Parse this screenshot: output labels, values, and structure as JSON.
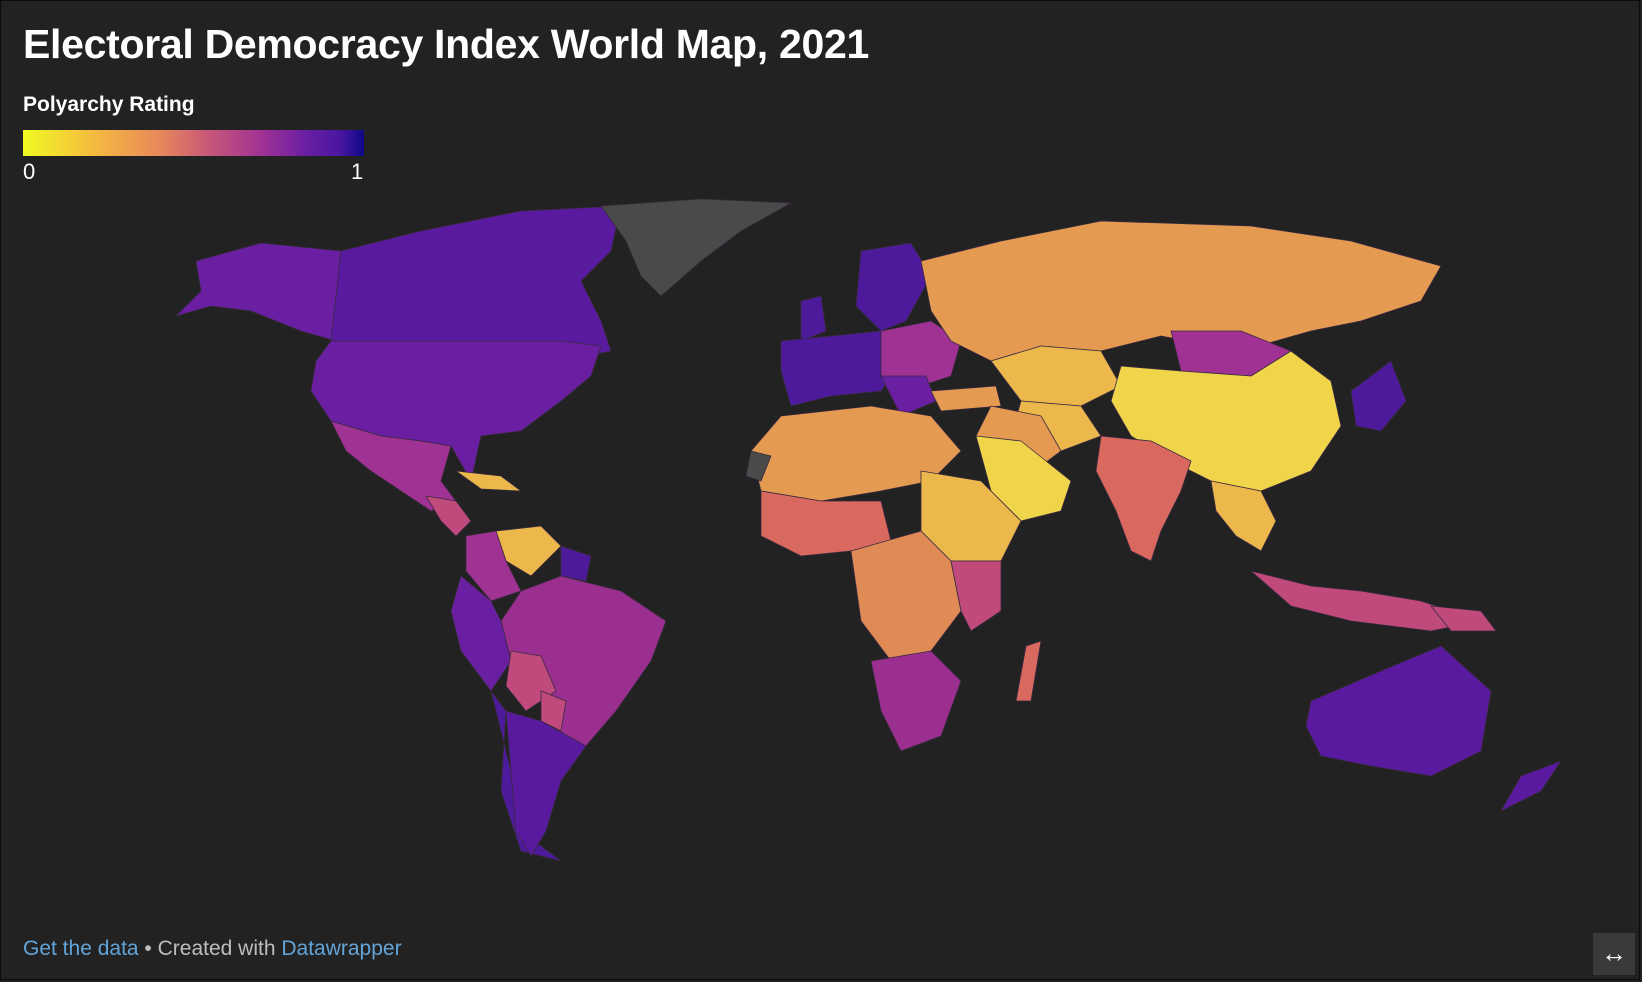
{
  "title": "Electoral Democracy Index World Map, 2021",
  "legend": {
    "title": "Polyarchy Rating",
    "min_label": "0",
    "max_label": "1",
    "colors": [
      "#f0f921",
      "#f5bd3f",
      "#e8885a",
      "#c65679",
      "#a03294",
      "#7a1fa5",
      "#4a16a0",
      "#0d0887"
    ]
  },
  "footer": {
    "get_data": "Get the data",
    "separator": " • Created with ",
    "datawrapper": "Datawrapper"
  },
  "expand_icon": "↔",
  "map_colors": {
    "no_data": "#4a4a4a",
    "very_high": "#4d1a9c",
    "high": "#6a1fa3",
    "mid_high": "#9a2f8f",
    "mid": "#c04a7c",
    "mid_low": "#d9685e",
    "low": "#e59a52",
    "very_low": "#ecb84c",
    "lowest": "#f0d44a"
  }
}
